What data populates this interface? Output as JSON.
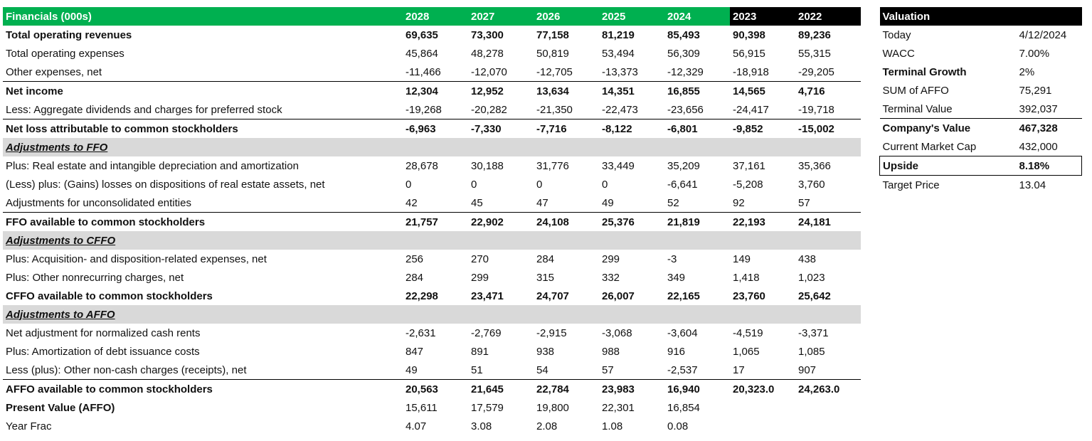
{
  "financials": {
    "title": "Financials (000s)",
    "years": [
      "2028",
      "2027",
      "2026",
      "2025",
      "2024",
      "2023",
      "2022"
    ],
    "rows": [
      {
        "label": "Total operating revenues",
        "values": [
          "69,635",
          "73,300",
          "77,158",
          "81,219",
          "85,493",
          "90,398",
          "89,236"
        ],
        "style": "bold"
      },
      {
        "label": "Total operating expenses",
        "values": [
          "45,864",
          "48,278",
          "50,819",
          "53,494",
          "56,309",
          "56,915",
          "55,315"
        ],
        "style": "normal"
      },
      {
        "label": "Other expenses, net",
        "values": [
          "-11,466",
          "-12,070",
          "-12,705",
          "-13,373",
          "-12,329",
          "-18,918",
          "-29,205"
        ],
        "style": "normal"
      },
      {
        "label": "Net income",
        "values": [
          "12,304",
          "12,952",
          "13,634",
          "14,351",
          "16,855",
          "14,565",
          "4,716"
        ],
        "style": "bold-rule"
      },
      {
        "label": "Less: Aggregate dividends and charges for preferred stock",
        "values": [
          "-19,268",
          "-20,282",
          "-21,350",
          "-22,473",
          "-23,656",
          "-24,417",
          "-19,718"
        ],
        "style": "normal"
      },
      {
        "label": "Net loss attributable to common stockholders",
        "values": [
          "-6,963",
          "-7,330",
          "-7,716",
          "-8,122",
          "-6,801",
          "-9,852",
          "-15,002"
        ],
        "style": "bold-rule"
      },
      {
        "label": "Adjustments to FFO",
        "values": [
          "",
          "",
          "",
          "",
          "",
          "",
          ""
        ],
        "style": "section"
      },
      {
        "label": "Plus: Real estate and intangible depreciation and amortization",
        "values": [
          "28,678",
          "30,188",
          "31,776",
          "33,449",
          "35,209",
          "37,161",
          "35,366"
        ],
        "style": "normal"
      },
      {
        "label": "(Less) plus: (Gains) losses on dispositions of real estate assets, net",
        "values": [
          "0",
          "0",
          "0",
          "0",
          "-6,641",
          "-5,208",
          "3,760"
        ],
        "style": "normal"
      },
      {
        "label": "Adjustments for unconsolidated entities",
        "values": [
          "42",
          "45",
          "47",
          "49",
          "52",
          "92",
          "57"
        ],
        "style": "normal"
      },
      {
        "label": "FFO available to common stockholders",
        "values": [
          "21,757",
          "22,902",
          "24,108",
          "25,376",
          "21,819",
          "22,193",
          "24,181"
        ],
        "style": "bold-rule"
      },
      {
        "label": "Adjustments to CFFO",
        "values": [
          "",
          "",
          "",
          "",
          "",
          "",
          ""
        ],
        "style": "section"
      },
      {
        "label": "Plus: Acquisition- and disposition-related expenses, net",
        "values": [
          "256",
          "270",
          "284",
          "299",
          "-3",
          "149",
          "438"
        ],
        "style": "normal"
      },
      {
        "label": "Plus: Other nonrecurring charges, net",
        "values": [
          "284",
          "299",
          "315",
          "332",
          "349",
          "1,418",
          "1,023"
        ],
        "style": "normal"
      },
      {
        "label": "CFFO available to common stockholders",
        "values": [
          "22,298",
          "23,471",
          "24,707",
          "26,007",
          "22,165",
          "23,760",
          "25,642"
        ],
        "style": "bold"
      },
      {
        "label": "Adjustments to AFFO",
        "values": [
          "",
          "",
          "",
          "",
          "",
          "",
          ""
        ],
        "style": "section"
      },
      {
        "label": "Net adjustment for normalized cash rents",
        "values": [
          "-2,631",
          "-2,769",
          "-2,915",
          "-3,068",
          "-3,604",
          "-4,519",
          "-3,371"
        ],
        "style": "normal"
      },
      {
        "label": "Plus: Amortization of debt issuance costs",
        "values": [
          "847",
          "891",
          "938",
          "988",
          "916",
          "1,065",
          "1,085"
        ],
        "style": "normal"
      },
      {
        "label": "Less (plus): Other non-cash charges (receipts), net",
        "values": [
          "49",
          "51",
          "54",
          "57",
          "-2,537",
          "17",
          "907"
        ],
        "style": "normal"
      },
      {
        "label": "AFFO available to common stockholders",
        "values": [
          "20,563",
          "21,645",
          "22,784",
          "23,983",
          "16,940",
          "20,323.0",
          "24,263.0"
        ],
        "style": "bold-rule"
      },
      {
        "label": "Present Value (AFFO)",
        "values": [
          "15,611",
          "17,579",
          "19,800",
          "22,301",
          "16,854",
          "",
          ""
        ],
        "style": "bold-label"
      },
      {
        "label": "Year Frac",
        "values": [
          "4.07",
          "3.08",
          "2.08",
          "1.08",
          "0.08",
          "",
          ""
        ],
        "style": "normal"
      }
    ]
  },
  "valuation": {
    "title": "Valuation",
    "rows": [
      {
        "label": "Today",
        "value": "4/12/2024",
        "style": "normal"
      },
      {
        "label": "WACC",
        "value": "7.00%",
        "style": "normal"
      },
      {
        "label": "Terminal Growth",
        "value": "2%",
        "style": "bold-label"
      },
      {
        "label": "SUM of AFFO",
        "value": "75,291",
        "style": "normal"
      },
      {
        "label": "Terminal Value",
        "value": "392,037",
        "style": "normal"
      },
      {
        "label": "Company's Value",
        "value": "467,328",
        "style": "bold-rule"
      },
      {
        "label": "Current Market Cap",
        "value": "432,000",
        "style": "normal"
      },
      {
        "label": "Upside",
        "value": "8.18%",
        "style": "boxed"
      },
      {
        "label": "Target Price",
        "value": "13.04",
        "style": "normal"
      }
    ]
  },
  "colors": {
    "header_green": "#00b050",
    "header_black": "#000000",
    "section_gray": "#d9d9d9"
  }
}
